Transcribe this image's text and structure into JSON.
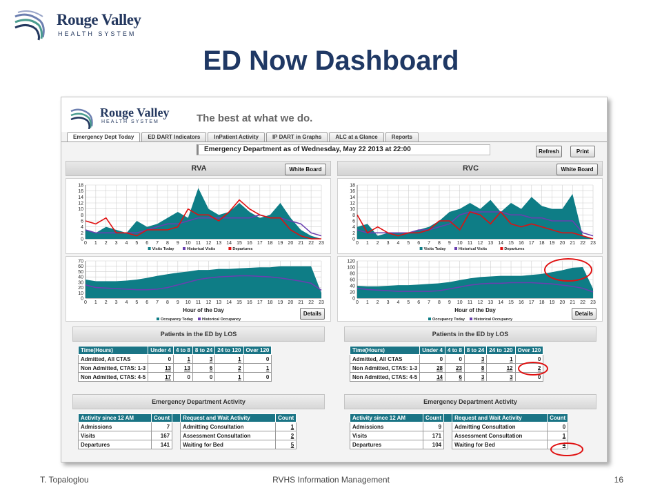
{
  "slide": {
    "logo_name": "Rouge Valley",
    "logo_sub": "HEALTH SYSTEM",
    "title": "ED Now Dashboard",
    "footer_left": "T. Topaloglou",
    "footer_center": "RVHS Information Management",
    "page_number": "16"
  },
  "app": {
    "logo_name": "Rouge Valley",
    "logo_sub": "HEALTH SYSTEM",
    "tagline": "The best at what we do.",
    "tabs": [
      "Emergency Dept Today",
      "ED DART Indicators",
      "InPatient Activity",
      "IP DART in Graphs",
      "ALC at a Glance",
      "Reports"
    ],
    "status": "Emergency Department as of Wednesday, May 22 2013 at 22:00",
    "refresh_label": "Refresh",
    "print_label": "Print",
    "white_board_label": "White Board",
    "details_label": "Details",
    "los_title": "Patients in the ED by LOS",
    "activity_title": "Emergency Department Activity",
    "legend_visits": "Visits Today",
    "legend_historical_visits": "Historical Visits",
    "legend_departures": "Departures",
    "legend_occ_today": "Occupancy Today",
    "legend_hist_occ": "Historical Occupancy",
    "hour_axis_label": "Hour of the Day",
    "los_headers": [
      "Time(Hours)",
      "Under 4",
      "4 to 8",
      "8 to 24",
      "24 to 120",
      "Over 120"
    ],
    "activity_headers": [
      "Activity since 12 AM",
      "Count",
      "",
      "Request and Wait Activity",
      "Count"
    ],
    "colors": {
      "teal": "#0e7d86",
      "purple": "#6a3fb0",
      "red": "#e01010",
      "header": "#1a7485"
    }
  },
  "sites": [
    {
      "name": "RVA",
      "los_rows": [
        [
          "Admitted, All CTAS",
          "0",
          "1",
          "3",
          "1",
          "0"
        ],
        [
          "Non Admitted, CTAS: 1-3",
          "13",
          "13",
          "6",
          "2",
          "1"
        ],
        [
          "Non Admitted, CTAS: 4-5",
          "17",
          "0",
          "0",
          "1",
          "0"
        ]
      ],
      "activity_rows": [
        [
          "Admissions",
          "7",
          "Admitting Consultation",
          "1"
        ],
        [
          "Visits",
          "167",
          "Assessment Consultation",
          "2"
        ],
        [
          "Departures",
          "141",
          "Waiting for Bed",
          "5"
        ]
      ]
    },
    {
      "name": "RVC",
      "los_rows": [
        [
          "Admitted, All CTAS",
          "0",
          "0",
          "3",
          "1",
          "0"
        ],
        [
          "Non Admitted, CTAS: 1-3",
          "28",
          "23",
          "8",
          "12",
          "2"
        ],
        [
          "Non Admitted, CTAS: 4-5",
          "14",
          "6",
          "3",
          "3",
          "0"
        ]
      ],
      "activity_rows": [
        [
          "Admissions",
          "9",
          "Admitting Consultation",
          "0"
        ],
        [
          "Visits",
          "171",
          "Assessment Consultation",
          "1"
        ],
        [
          "Departures",
          "104",
          "Waiting for Bed",
          "4"
        ]
      ]
    }
  ],
  "chart_data": [
    {
      "type": "area",
      "site": "RVA",
      "x": [
        0,
        1,
        2,
        3,
        4,
        5,
        6,
        7,
        8,
        9,
        10,
        11,
        12,
        13,
        14,
        15,
        16,
        17,
        18,
        19,
        20,
        21,
        22,
        23
      ],
      "ylim": [
        0,
        18
      ],
      "series": [
        {
          "name": "Visits Today",
          "values": [
            3,
            2,
            4,
            3,
            2,
            6,
            4,
            5,
            7,
            9,
            7,
            17,
            10,
            8,
            9,
            12,
            9,
            7,
            8,
            12,
            7,
            3,
            1,
            0
          ]
        },
        {
          "name": "Historical Visits",
          "values": [
            3,
            2,
            2,
            2,
            2,
            2,
            3,
            4,
            5,
            5,
            6,
            7,
            7,
            7,
            7,
            7,
            7,
            8,
            7,
            7,
            6,
            5,
            2,
            1
          ]
        },
        {
          "name": "Departures",
          "values": [
            6,
            5,
            7,
            2,
            2,
            1,
            3,
            3,
            3,
            4,
            10,
            8,
            8,
            6,
            9,
            13,
            10,
            8,
            7,
            7,
            3,
            1,
            0,
            0
          ]
        }
      ]
    },
    {
      "type": "area",
      "site": "RVA",
      "x": [
        0,
        1,
        2,
        3,
        4,
        5,
        6,
        7,
        8,
        9,
        10,
        11,
        12,
        13,
        14,
        15,
        16,
        17,
        18,
        19,
        20,
        21,
        22,
        23
      ],
      "ylim": [
        0,
        70
      ],
      "xlabel": "Hour of the Day",
      "series": [
        {
          "name": "Occupancy Today",
          "values": [
            35,
            32,
            32,
            32,
            33,
            35,
            38,
            42,
            45,
            48,
            50,
            53,
            53,
            55,
            55,
            56,
            57,
            58,
            58,
            60,
            60,
            60,
            60,
            10
          ]
        },
        {
          "name": "Historical Occupancy",
          "values": [
            25,
            20,
            19,
            18,
            17,
            16,
            16,
            17,
            20,
            25,
            30,
            35,
            38,
            40,
            41,
            42,
            42,
            41,
            40,
            38,
            35,
            32,
            28,
            15
          ]
        }
      ]
    },
    {
      "type": "area",
      "site": "RVC",
      "x": [
        0,
        1,
        2,
        3,
        4,
        5,
        6,
        7,
        8,
        9,
        10,
        11,
        12,
        13,
        14,
        15,
        16,
        17,
        18,
        19,
        20,
        21,
        22,
        23
      ],
      "ylim": [
        0,
        18
      ],
      "series": [
        {
          "name": "Visits Today",
          "values": [
            4,
            5,
            1,
            2,
            2,
            2,
            3,
            4,
            6,
            9,
            10,
            12,
            10,
            13,
            9,
            12,
            10,
            14,
            11,
            10,
            10,
            15,
            1,
            0
          ]
        },
        {
          "name": "Historical Visits",
          "values": [
            3,
            2,
            2,
            2,
            2,
            2,
            3,
            3,
            4,
            5,
            8,
            9,
            9,
            9,
            9,
            8,
            8,
            7,
            7,
            6,
            6,
            6,
            2,
            1
          ]
        },
        {
          "name": "Departures",
          "values": [
            8,
            2,
            4,
            2,
            1,
            2,
            2,
            3,
            6,
            6,
            3,
            9,
            8,
            5,
            9,
            5,
            4,
            5,
            4,
            3,
            2,
            2,
            1,
            0
          ]
        }
      ]
    },
    {
      "type": "area",
      "site": "RVC",
      "x": [
        0,
        1,
        2,
        3,
        4,
        5,
        6,
        7,
        8,
        9,
        10,
        11,
        12,
        13,
        14,
        15,
        16,
        17,
        18,
        19,
        20,
        21,
        22,
        23
      ],
      "ylim": [
        0,
        120
      ],
      "xlabel": "Hour of the Day",
      "series": [
        {
          "name": "Occupancy Today",
          "values": [
            40,
            38,
            38,
            40,
            42,
            42,
            44,
            46,
            48,
            52,
            58,
            64,
            68,
            70,
            72,
            72,
            72,
            75,
            78,
            84,
            90,
            98,
            100,
            30
          ]
        },
        {
          "name": "Historical Occupancy",
          "values": [
            32,
            28,
            26,
            24,
            22,
            22,
            22,
            22,
            24,
            30,
            36,
            42,
            46,
            48,
            48,
            50,
            50,
            50,
            48,
            46,
            42,
            38,
            32,
            20
          ]
        }
      ]
    }
  ]
}
